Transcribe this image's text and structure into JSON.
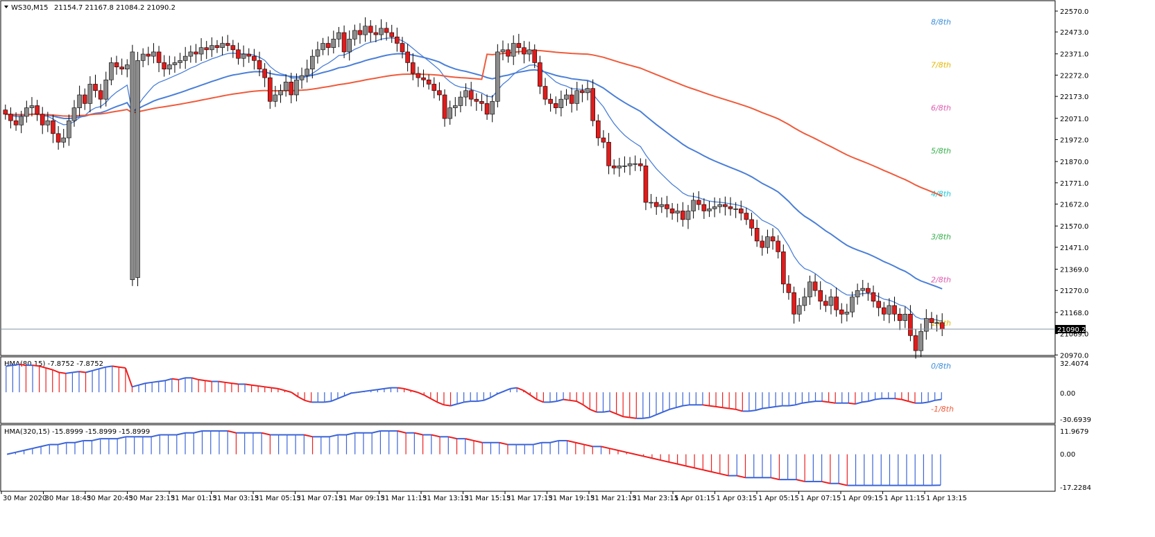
{
  "header": {
    "symbol": "WS30,M15",
    "ohlc": "21154.7 21167.8 21084.2 21090.2"
  },
  "current_price": "21090.2",
  "colors": {
    "bull_body": "#8c8c8c",
    "bear_body": "#e11b1b",
    "wick": "#000000",
    "ma_blue": "#4a7fd8",
    "ma_red": "#f05a3a",
    "hist_up": "#3a63d8",
    "hist_down": "#ee1c1c",
    "grid_line": "#7f93a3"
  },
  "murrey_levels": [
    {
      "label": "8/8th",
      "price": 22520,
      "color": "#3b8edb"
    },
    {
      "label": "7/8th",
      "price": 22320,
      "color": "#e6b800"
    },
    {
      "label": "6/8th",
      "price": 22120,
      "color": "#e05bb0"
    },
    {
      "label": "5/8th",
      "price": 21920,
      "color": "#34b04a"
    },
    {
      "label": "4/8th",
      "price": 21720,
      "color": "#1ec9d8"
    },
    {
      "label": "3/8th",
      "price": 21520,
      "color": "#34b04a"
    },
    {
      "label": "2/8th",
      "price": 21320,
      "color": "#e05bb0"
    },
    {
      "label": "1/8th",
      "price": 21120,
      "color": "#e6b800"
    },
    {
      "label": "0/8th",
      "price": 20920,
      "color": "#3b8edb"
    },
    {
      "label": "-1/8th",
      "price": 20720,
      "color": "#f05a3a"
    }
  ],
  "hma1": {
    "title": "HMA(80,15) -7.8752 -7.8752",
    "max_label": "32.4074",
    "zero_label": "0.00",
    "min_label": "-30.6939"
  },
  "hma2": {
    "title": "HMA(320,15) -15.8999 -15.8999 -15.8999",
    "max_label": "11.9679",
    "zero_label": "0.00",
    "min_label": "-17.2284"
  },
  "chart_data": {
    "type": "candlestick",
    "price_axis": {
      "min": 20970.9,
      "max": 22570.0,
      "ticks": [
        "22570.0",
        "22473.0",
        "22371.0",
        "22272.0",
        "22173.0",
        "22071.0",
        "21972.0",
        "21870.0",
        "21771.0",
        "21672.0",
        "21570.0",
        "21471.0",
        "21369.0",
        "21270.0",
        "21168.0",
        "21069.0",
        "20970.0"
      ]
    },
    "x_axis_labels": [
      "30 Mar 2020",
      "30 Mar 18:45",
      "30 Mar 20:45",
      "30 Mar 23:15",
      "31 Mar 01:15",
      "31 Mar 03:15",
      "31 Mar 05:15",
      "31 Mar 07:15",
      "31 Mar 09:15",
      "31 Mar 11:15",
      "31 Mar 13:15",
      "31 Mar 15:15",
      "31 Mar 17:15",
      "31 Mar 19:15",
      "31 Mar 21:15",
      "31 Mar 23:15",
      "1 Apr 01:15",
      "1 Apr 03:15",
      "1 Apr 05:15",
      "1 Apr 07:15",
      "1 Apr 09:15",
      "1 Apr 11:15",
      "1 Apr 13:15"
    ],
    "candles_close": [
      22090,
      22060,
      22040,
      22080,
      22120,
      22130,
      22090,
      22040,
      22060,
      22000,
      21960,
      21980,
      22060,
      22120,
      22180,
      22140,
      22230,
      22200,
      22160,
      22250,
      22330,
      22310,
      22300,
      22320,
      21330,
      22340,
      22370,
      22360,
      22380,
      22330,
      22300,
      22320,
      22330,
      22340,
      22360,
      22380,
      22370,
      22400,
      22390,
      22410,
      22400,
      22420,
      22410,
      22390,
      22350,
      22370,
      22360,
      22340,
      22300,
      22260,
      22150,
      22180,
      22200,
      22240,
      22180,
      22250,
      22270,
      22300,
      22360,
      22390,
      22420,
      22400,
      22440,
      22470,
      22380,
      22440,
      22480,
      22460,
      22500,
      22470,
      22460,
      22490,
      22470,
      22450,
      22420,
      22380,
      22330,
      22280,
      22260,
      22250,
      22230,
      22200,
      22180,
      22070,
      22120,
      22130,
      22170,
      22200,
      22160,
      22150,
      22140,
      22090,
      22150,
      22380,
      22390,
      22360,
      22420,
      22400,
      22370,
      22390,
      22330,
      22220,
      22160,
      22140,
      22120,
      22160,
      22180,
      22140,
      22200,
      22190,
      22210,
      22060,
      21980,
      21960,
      21850,
      21840,
      21850,
      21850,
      21860,
      21860,
      21850,
      21680,
      21680,
      21660,
      21670,
      21650,
      21630,
      21640,
      21600,
      21640,
      21690,
      21670,
      21640,
      21650,
      21660,
      21670,
      21660,
      21650,
      21650,
      21630,
      21600,
      21560,
      21500,
      21470,
      21520,
      21500,
      21450,
      21300,
      21260,
      21160,
      21200,
      21240,
      21310,
      21270,
      21220,
      21200,
      21240,
      21180,
      21160,
      21170,
      21240,
      21270,
      21280,
      21260,
      21220,
      21190,
      21160,
      21200,
      21160,
      21130,
      21160,
      21060,
      20990,
      21080,
      21140,
      21120,
      21120,
      21090
    ],
    "hma1_values": [
      29,
      30,
      31,
      30,
      30,
      29,
      27,
      25,
      22,
      21,
      22,
      23,
      22,
      24,
      26,
      28,
      29,
      28,
      27,
      6,
      8,
      10,
      11,
      12,
      13,
      15,
      14,
      16,
      16,
      14,
      13,
      12,
      12,
      11,
      10,
      9,
      9,
      8,
      7,
      6,
      5,
      4,
      2,
      0,
      -5,
      -9,
      -11,
      -11,
      -11,
      -10,
      -7,
      -4,
      -1,
      0,
      1,
      2,
      3,
      4,
      5,
      5,
      4,
      2,
      0,
      -3,
      -7,
      -11,
      -14,
      -15,
      -13,
      -11,
      -10,
      -10,
      -9,
      -6,
      -2,
      1,
      4,
      5,
      2,
      -3,
      -8,
      -11,
      -11,
      -10,
      -8,
      -9,
      -10,
      -14,
      -19,
      -22,
      -22,
      -21,
      -24,
      -27,
      -28,
      -29,
      -29,
      -28,
      -25,
      -22,
      -19,
      -17,
      -15,
      -14,
      -14,
      -14,
      -15,
      -16,
      -17,
      -18,
      -19,
      -21,
      -21,
      -20,
      -18,
      -17,
      -16,
      -15,
      -15,
      -14,
      -12,
      -11,
      -10,
      -10,
      -11,
      -12,
      -12,
      -12,
      -13,
      -11,
      -10,
      -8,
      -7,
      -7,
      -7,
      -8,
      -10,
      -12,
      -12,
      -11,
      -9,
      -7.875
    ],
    "hma2_values": [
      0,
      1,
      2,
      3,
      4,
      5,
      5,
      6,
      6,
      7,
      7,
      8,
      8,
      8,
      9,
      9,
      9,
      9,
      10,
      10,
      10,
      11,
      11,
      12,
      12,
      12,
      12,
      11,
      11,
      11,
      11,
      10,
      10,
      10,
      10,
      10,
      9,
      9,
      9,
      10,
      10,
      11,
      11,
      11,
      12,
      12,
      12,
      11,
      11,
      10,
      10,
      9,
      9,
      8,
      8,
      7,
      6,
      6,
      6,
      5,
      5,
      5,
      5,
      6,
      6,
      7,
      7,
      6,
      5,
      4,
      4,
      3,
      2,
      1,
      0,
      -1,
      -2,
      -3,
      -4,
      -5,
      -6,
      -7,
      -8,
      -9,
      -10,
      -11,
      -11,
      -12,
      -12,
      -12,
      -12,
      -13,
      -13,
      -13,
      -14,
      -14,
      -14,
      -15,
      -15,
      -16,
      -16,
      -16,
      -16,
      -16,
      -16,
      -16,
      -16,
      -16,
      -16,
      -16,
      -15.9
    ]
  }
}
